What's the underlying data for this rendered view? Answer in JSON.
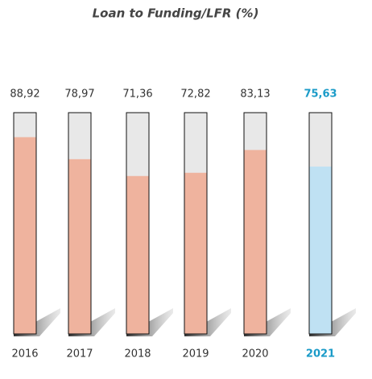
{
  "chart_data": {
    "type": "bar",
    "title": "Loan to Funding/LFR (%)",
    "categories": [
      "2016",
      "2017",
      "2018",
      "2019",
      "2020",
      "2021"
    ],
    "values": [
      88.92,
      78.97,
      71.36,
      72.82,
      83.13,
      75.63
    ],
    "value_labels": [
      "88,92",
      "78,97",
      "71,36",
      "72,82",
      "83,13",
      "75,63"
    ],
    "colors": [
      "#efb39e",
      "#efb39e",
      "#efb39e",
      "#efb39e",
      "#efb39e",
      "#bfe1f3"
    ],
    "label_colors": [
      "#333333",
      "#333333",
      "#333333",
      "#333333",
      "#333333",
      "#1b9bc8"
    ],
    "bold_labels": [
      false,
      false,
      false,
      false,
      false,
      true
    ],
    "track_color": "#e8e8e8",
    "ylim": [
      0,
      100
    ]
  }
}
